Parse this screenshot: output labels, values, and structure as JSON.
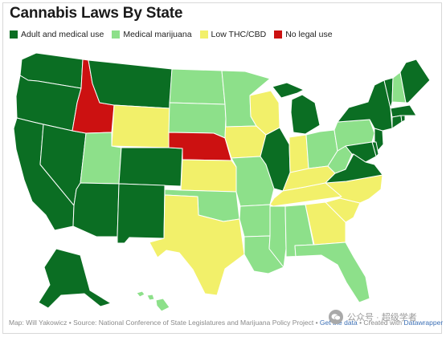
{
  "title": "Cannabis Laws By State",
  "legend": [
    {
      "label": "Adult and medical use",
      "color": "#0b6e23"
    },
    {
      "label": "Medical marijuana",
      "color": "#8de08a"
    },
    {
      "label": "Low THC/CBD",
      "color": "#f2f06a"
    },
    {
      "label": "No legal use",
      "color": "#cc1111"
    }
  ],
  "state_status": {
    "WA": "adult",
    "OR": "adult",
    "CA": "adult",
    "NV": "adult",
    "ID": "none",
    "MT": "adult",
    "WY": "low",
    "UT": "medical",
    "AZ": "adult",
    "CO": "adult",
    "NM": "adult",
    "ND": "medical",
    "SD": "medical",
    "NE": "none",
    "KS": "low",
    "OK": "medical",
    "TX": "low",
    "MN": "medical",
    "IA": "low",
    "MO": "medical",
    "AR": "medical",
    "LA": "medical",
    "WI": "low",
    "IL": "adult",
    "MI": "adult",
    "IN": "low",
    "OH": "medical",
    "KY": "low",
    "TN": "low",
    "MS": "medical",
    "AL": "medical",
    "GA": "low",
    "FL": "medical",
    "SC": "low",
    "NC": "low",
    "VA": "adult",
    "WV": "medical",
    "PA": "medical",
    "NY": "adult",
    "VT": "adult",
    "NH": "medical",
    "ME": "adult",
    "MA": "adult",
    "CT": "adult",
    "RI": "adult",
    "NJ": "adult",
    "DE": "adult",
    "MD": "adult",
    "AK": "adult",
    "HI": "medical"
  },
  "footer": {
    "prefix": "Map: Will Yakowicz • Source: National Conference of State Legislatures and Marijuana Policy Project • ",
    "get_data": "Get the data",
    "middle": " • Created with ",
    "tool": "Datawrapper"
  },
  "watermark": "公众号 · 超级学者"
}
